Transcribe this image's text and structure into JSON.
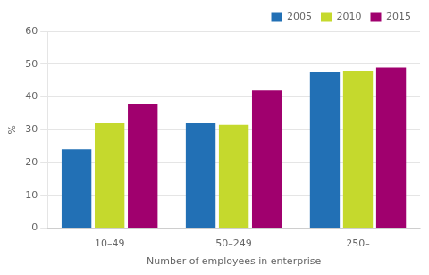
{
  "chart_data": {
    "type": "bar",
    "categories": [
      "10–49",
      "50–249",
      "250–"
    ],
    "series": [
      {
        "name": "2005",
        "color": "#2270b5",
        "values": [
          24,
          32,
          47.5
        ]
      },
      {
        "name": "2010",
        "color": "#c5d92d",
        "values": [
          32,
          31.5,
          48
        ]
      },
      {
        "name": "2015",
        "color": "#a0006e",
        "values": [
          38,
          42,
          49
        ]
      }
    ],
    "xlabel": "Number of employees in enterprise",
    "ylabel": "%",
    "ylim": [
      0,
      60
    ],
    "yticks": [
      0,
      10,
      20,
      30,
      40,
      50,
      60
    ],
    "grid": true,
    "legend": "upper right"
  }
}
